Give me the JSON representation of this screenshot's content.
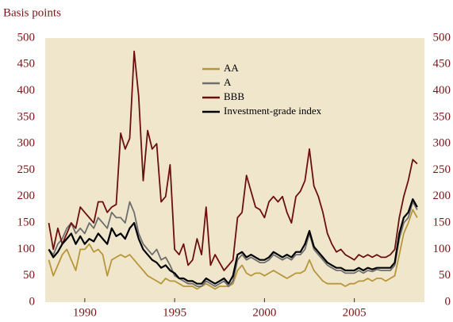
{
  "chart_data": {
    "type": "line",
    "title": "Basis points",
    "x": [
      1988.0,
      1988.25,
      1988.5,
      1988.75,
      1989.0,
      1989.25,
      1989.5,
      1989.75,
      1990.0,
      1990.25,
      1990.5,
      1990.75,
      1991.0,
      1991.25,
      1991.5,
      1991.75,
      1992.0,
      1992.25,
      1992.5,
      1992.75,
      1993.0,
      1993.25,
      1993.5,
      1993.75,
      1994.0,
      1994.25,
      1994.5,
      1994.75,
      1995.0,
      1995.25,
      1995.5,
      1995.75,
      1996.0,
      1996.25,
      1996.5,
      1996.75,
      1997.0,
      1997.25,
      1997.5,
      1997.75,
      1998.0,
      1998.25,
      1998.5,
      1998.75,
      1999.0,
      1999.25,
      1999.5,
      1999.75,
      2000.0,
      2000.25,
      2000.5,
      2000.75,
      2001.0,
      2001.25,
      2001.5,
      2001.75,
      2002.0,
      2002.25,
      2002.5,
      2002.75,
      2003.0,
      2003.25,
      2003.5,
      2003.75,
      2004.0,
      2004.25,
      2004.5,
      2004.75,
      2005.0,
      2005.25,
      2005.5,
      2005.75,
      2006.0,
      2006.25,
      2006.5,
      2006.75,
      2007.0,
      2007.25,
      2007.5,
      2007.75,
      2008.0,
      2008.25,
      2008.5
    ],
    "series": [
      {
        "name": "AA",
        "color": "#b8973a",
        "values": [
          80,
          50,
          70,
          90,
          100,
          80,
          60,
          100,
          100,
          110,
          95,
          100,
          90,
          50,
          80,
          85,
          90,
          85,
          90,
          80,
          70,
          60,
          50,
          45,
          40,
          35,
          45,
          40,
          40,
          35,
          30,
          30,
          30,
          25,
          30,
          35,
          30,
          25,
          30,
          30,
          30,
          35,
          60,
          70,
          55,
          50,
          55,
          55,
          50,
          55,
          60,
          55,
          50,
          45,
          50,
          55,
          55,
          60,
          80,
          60,
          50,
          40,
          35,
          35,
          35,
          35,
          30,
          35,
          35,
          40,
          40,
          45,
          40,
          45,
          45,
          40,
          45,
          50,
          90,
          130,
          150,
          175,
          160
        ]
      },
      {
        "name": "A",
        "color": "#6e6e6e",
        "values": [
          100,
          90,
          110,
          120,
          140,
          150,
          130,
          140,
          130,
          150,
          140,
          160,
          150,
          140,
          170,
          160,
          160,
          150,
          190,
          170,
          130,
          110,
          100,
          90,
          100,
          80,
          85,
          70,
          50,
          45,
          40,
          35,
          35,
          30,
          30,
          40,
          35,
          30,
          35,
          40,
          30,
          40,
          80,
          90,
          80,
          85,
          80,
          75,
          75,
          80,
          90,
          85,
          80,
          85,
          80,
          90,
          90,
          100,
          130,
          100,
          90,
          80,
          70,
          65,
          60,
          60,
          55,
          55,
          55,
          60,
          55,
          60,
          58,
          62,
          60,
          60,
          60,
          70,
          120,
          150,
          160,
          190,
          175
        ]
      },
      {
        "name": "BBB",
        "color": "#6b0f0f",
        "values": [
          150,
          100,
          140,
          110,
          130,
          150,
          140,
          180,
          170,
          160,
          150,
          190,
          190,
          170,
          180,
          185,
          320,
          290,
          310,
          475,
          390,
          230,
          325,
          290,
          300,
          190,
          200,
          260,
          100,
          90,
          110,
          70,
          80,
          120,
          90,
          180,
          70,
          90,
          75,
          60,
          70,
          80,
          160,
          170,
          240,
          210,
          180,
          175,
          160,
          190,
          200,
          190,
          200,
          170,
          150,
          200,
          210,
          230,
          290,
          220,
          200,
          170,
          130,
          110,
          95,
          100,
          90,
          85,
          80,
          90,
          85,
          90,
          85,
          90,
          85,
          85,
          90,
          100,
          160,
          200,
          230,
          270,
          262
        ]
      },
      {
        "name": "Investment-grade index",
        "color": "#000000",
        "values": [
          100,
          85,
          95,
          110,
          120,
          130,
          110,
          125,
          110,
          120,
          115,
          130,
          120,
          110,
          140,
          125,
          130,
          120,
          140,
          150,
          120,
          100,
          90,
          80,
          75,
          65,
          70,
          60,
          55,
          45,
          45,
          40,
          40,
          35,
          35,
          45,
          40,
          35,
          40,
          45,
          35,
          50,
          90,
          95,
          85,
          90,
          85,
          80,
          80,
          85,
          95,
          90,
          85,
          90,
          85,
          95,
          95,
          110,
          135,
          105,
          95,
          85,
          75,
          70,
          65,
          65,
          60,
          60,
          60,
          65,
          60,
          65,
          62,
          65,
          65,
          65,
          65,
          75,
          130,
          160,
          170,
          195,
          180
        ]
      }
    ],
    "xlim": [
      1987.8,
      2008.9
    ],
    "xticks": [
      1990,
      1995,
      2000,
      2005
    ],
    "ylim": [
      0,
      500
    ],
    "yticks": [
      0,
      50,
      100,
      150,
      200,
      250,
      300,
      350,
      400,
      450,
      500
    ],
    "y2lim": [
      0,
      500
    ],
    "y2ticks": [
      0,
      50,
      100,
      150,
      200,
      250,
      300,
      350,
      400,
      450,
      500
    ],
    "grid": false
  }
}
